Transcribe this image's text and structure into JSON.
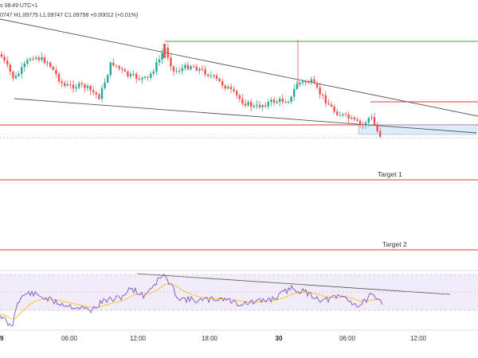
{
  "header": {
    "text": "s 08:49 UTC+1",
    "ohlc": "0747  H1.09775  L1.09747  C1.09758  +0.00012 (+0.01%)"
  },
  "colors": {
    "up": "#26a69a",
    "down": "#ef5350",
    "level": "#e53935",
    "resistance": "#43a047",
    "trendline": "#555555",
    "zone": "#bbdefb",
    "rsi_bg": "#ede7f6",
    "rsi_line": "#7e57c2",
    "rsi_ma": "#fbc02d"
  },
  "chart_data": {
    "type": "candlestick",
    "x_ticks": [
      "9",
      "06:00",
      "12:00",
      "18:00",
      "30",
      "06:00",
      "12:00"
    ],
    "bold_ticks": [
      "9",
      "30"
    ],
    "annotations": {
      "target1": "Target 1",
      "target2": "Target 2"
    },
    "rsi": {
      "bands": [
        70,
        30
      ],
      "range": [
        0,
        100
      ]
    }
  }
}
